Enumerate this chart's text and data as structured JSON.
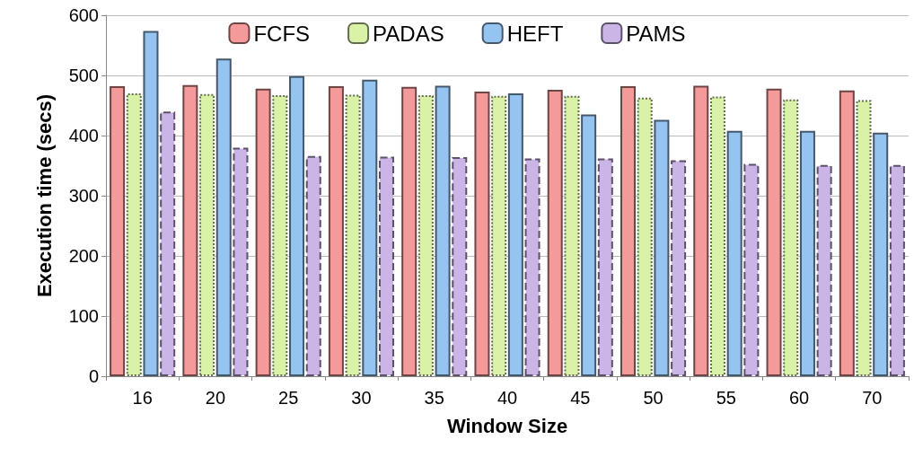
{
  "chart_data": {
    "type": "bar",
    "xlabel": "Window Size",
    "ylabel": "Execution time (secs)",
    "categories": [
      "16",
      "20",
      "25",
      "30",
      "35",
      "40",
      "45",
      "50",
      "55",
      "60",
      "70"
    ],
    "series": [
      {
        "name": "FCFS",
        "color": "#f59a9a",
        "line_style": "solid",
        "values": [
          482,
          484,
          478,
          482,
          481,
          473,
          476,
          482,
          483,
          478,
          475
        ]
      },
      {
        "name": "PADAS",
        "color": "#d9f2a8",
        "line_style": "dotted",
        "values": [
          470,
          469,
          467,
          468,
          467,
          466,
          466,
          463,
          465,
          460,
          459
        ]
      },
      {
        "name": "HEFT",
        "color": "#96c4f0",
        "line_style": "solid",
        "values": [
          574,
          528,
          499,
          493,
          483,
          470,
          435,
          426,
          408,
          408,
          405
        ]
      },
      {
        "name": "PAMS",
        "color": "#cbb5e6",
        "line_style": "dashed",
        "values": [
          440,
          380,
          366,
          365,
          364,
          362,
          362,
          359,
          353,
          351,
          351
        ]
      }
    ],
    "ylim": [
      0,
      600
    ],
    "yticks": [
      0,
      100,
      200,
      300,
      400,
      500,
      600
    ],
    "grid": "y",
    "legend": "top"
  }
}
